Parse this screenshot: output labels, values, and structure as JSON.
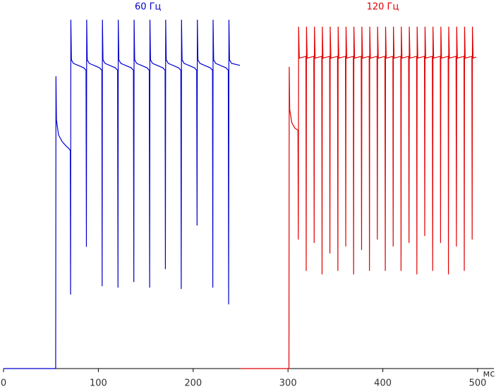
{
  "chart_data": {
    "type": "line",
    "x_label": "мс",
    "xlim": [
      0,
      500
    ],
    "xticks": [
      0,
      100,
      200,
      300,
      400,
      500
    ],
    "ylim": [
      0,
      100
    ],
    "series": [
      {
        "name": "60 Гц",
        "color": "#0000cc",
        "x": [
          0,
          55,
          55.3,
          55.8,
          58,
          62,
          66,
          68.5,
          70.4,
          70.7,
          71.0,
          71.6,
          73.7,
          84.7,
          87.0,
          87.4,
          87.7,
          88.3,
          90.4,
          101.4,
          103.7,
          104.0,
          104.3,
          104.9,
          107.0,
          118.0,
          120.3,
          120.7,
          121.0,
          121.6,
          123.7,
          134.7,
          137.0,
          137.4,
          137.7,
          138.3,
          140.4,
          151.4,
          153.7,
          154.1,
          154.4,
          155.0,
          157.1,
          168.1,
          170.4,
          170.7,
          171.0,
          171.6,
          173.7,
          184.7,
          187.0,
          187.4,
          187.7,
          188.3,
          190.4,
          201.4,
          203.7,
          204.1,
          204.4,
          205.0,
          207.1,
          218.1,
          220.4,
          220.7,
          221.0,
          221.6,
          223.7,
          234.7,
          237.0,
          237.4,
          237.7,
          238.3,
          240.4,
          249.3
        ],
        "values": [
          0,
          0,
          83.8,
          71.3,
          67,
          65,
          63.8,
          63.2,
          62.5,
          21.2,
          100,
          88.5,
          87.5,
          86.2,
          85.5,
          34.9,
          100,
          88.5,
          87.5,
          86.2,
          85.5,
          23.6,
          100,
          88.5,
          87.5,
          86.2,
          85.5,
          23.2,
          100,
          88.5,
          87.5,
          86.2,
          85.5,
          24.8,
          100,
          88.5,
          87.5,
          86.2,
          85.5,
          23.2,
          100,
          88.5,
          87.5,
          86.2,
          85.5,
          28.5,
          100,
          88.5,
          87.5,
          86.2,
          85.5,
          22.8,
          100,
          88.5,
          87.5,
          86.2,
          85.5,
          41.0,
          100,
          88.5,
          87.5,
          86.2,
          85.5,
          23.2,
          100,
          88.5,
          87.5,
          86.2,
          85.5,
          18.4,
          100,
          88.5,
          87.5,
          86.9
        ]
      },
      {
        "name": "120 Гц",
        "color": "#e00000",
        "x": [
          250,
          301,
          301.3,
          301.8,
          304,
          307,
          310.5,
          310.9,
          311.2,
          311.9,
          318.9,
          319.2,
          319.5,
          320.2,
          327.2,
          327.6,
          327.9,
          328.6,
          335.6,
          335.9,
          336.2,
          336.9,
          343.9,
          344.2,
          344.5,
          345.2,
          352.2,
          352.6,
          352.9,
          353.6,
          360.6,
          360.9,
          361.2,
          361.9,
          368.9,
          369.2,
          369.5,
          370.2,
          377.2,
          377.6,
          377.9,
          378.6,
          385.6,
          385.9,
          386.2,
          386.9,
          393.9,
          394.2,
          394.5,
          395.2,
          402.2,
          402.6,
          402.9,
          403.6,
          410.6,
          410.9,
          411.2,
          411.9,
          418.9,
          419.2,
          419.5,
          420.2,
          427.2,
          427.6,
          427.9,
          428.6,
          435.6,
          435.9,
          436.2,
          436.9,
          443.9,
          444.2,
          444.5,
          445.2,
          452.2,
          452.6,
          452.9,
          453.6,
          460.6,
          460.9,
          461.2,
          461.9,
          468.9,
          469.2,
          469.5,
          470.2,
          477.2,
          477.6,
          477.9,
          478.6,
          485.6,
          485.9,
          486.2,
          486.9,
          493.9,
          494.2,
          494.5,
          495.2,
          498.5
        ],
        "values": [
          0,
          0,
          86.5,
          74.3,
          70.5,
          69,
          68.3,
          37,
          98,
          89,
          89.5,
          28,
          98,
          89,
          89.5,
          36,
          98,
          89,
          89.5,
          27,
          98,
          89,
          89.5,
          33,
          98,
          89,
          89.5,
          28,
          98,
          89,
          89.5,
          35,
          98,
          89,
          89.5,
          27,
          98,
          89,
          89.5,
          34,
          98,
          89,
          89.5,
          28,
          98,
          89,
          89.5,
          37,
          98,
          89,
          89.5,
          28,
          98,
          89,
          89.5,
          35,
          98,
          89,
          89.5,
          28,
          98,
          89,
          89.5,
          36,
          98,
          89,
          89.5,
          27,
          98,
          89,
          89.5,
          38,
          98,
          89,
          89.5,
          28,
          98,
          89,
          89.5,
          36,
          98,
          89,
          89.5,
          27,
          98,
          89,
          89.5,
          35,
          98,
          89,
          89.5,
          28,
          98,
          89,
          89.5,
          37,
          98,
          89,
          89.3
        ]
      }
    ]
  }
}
